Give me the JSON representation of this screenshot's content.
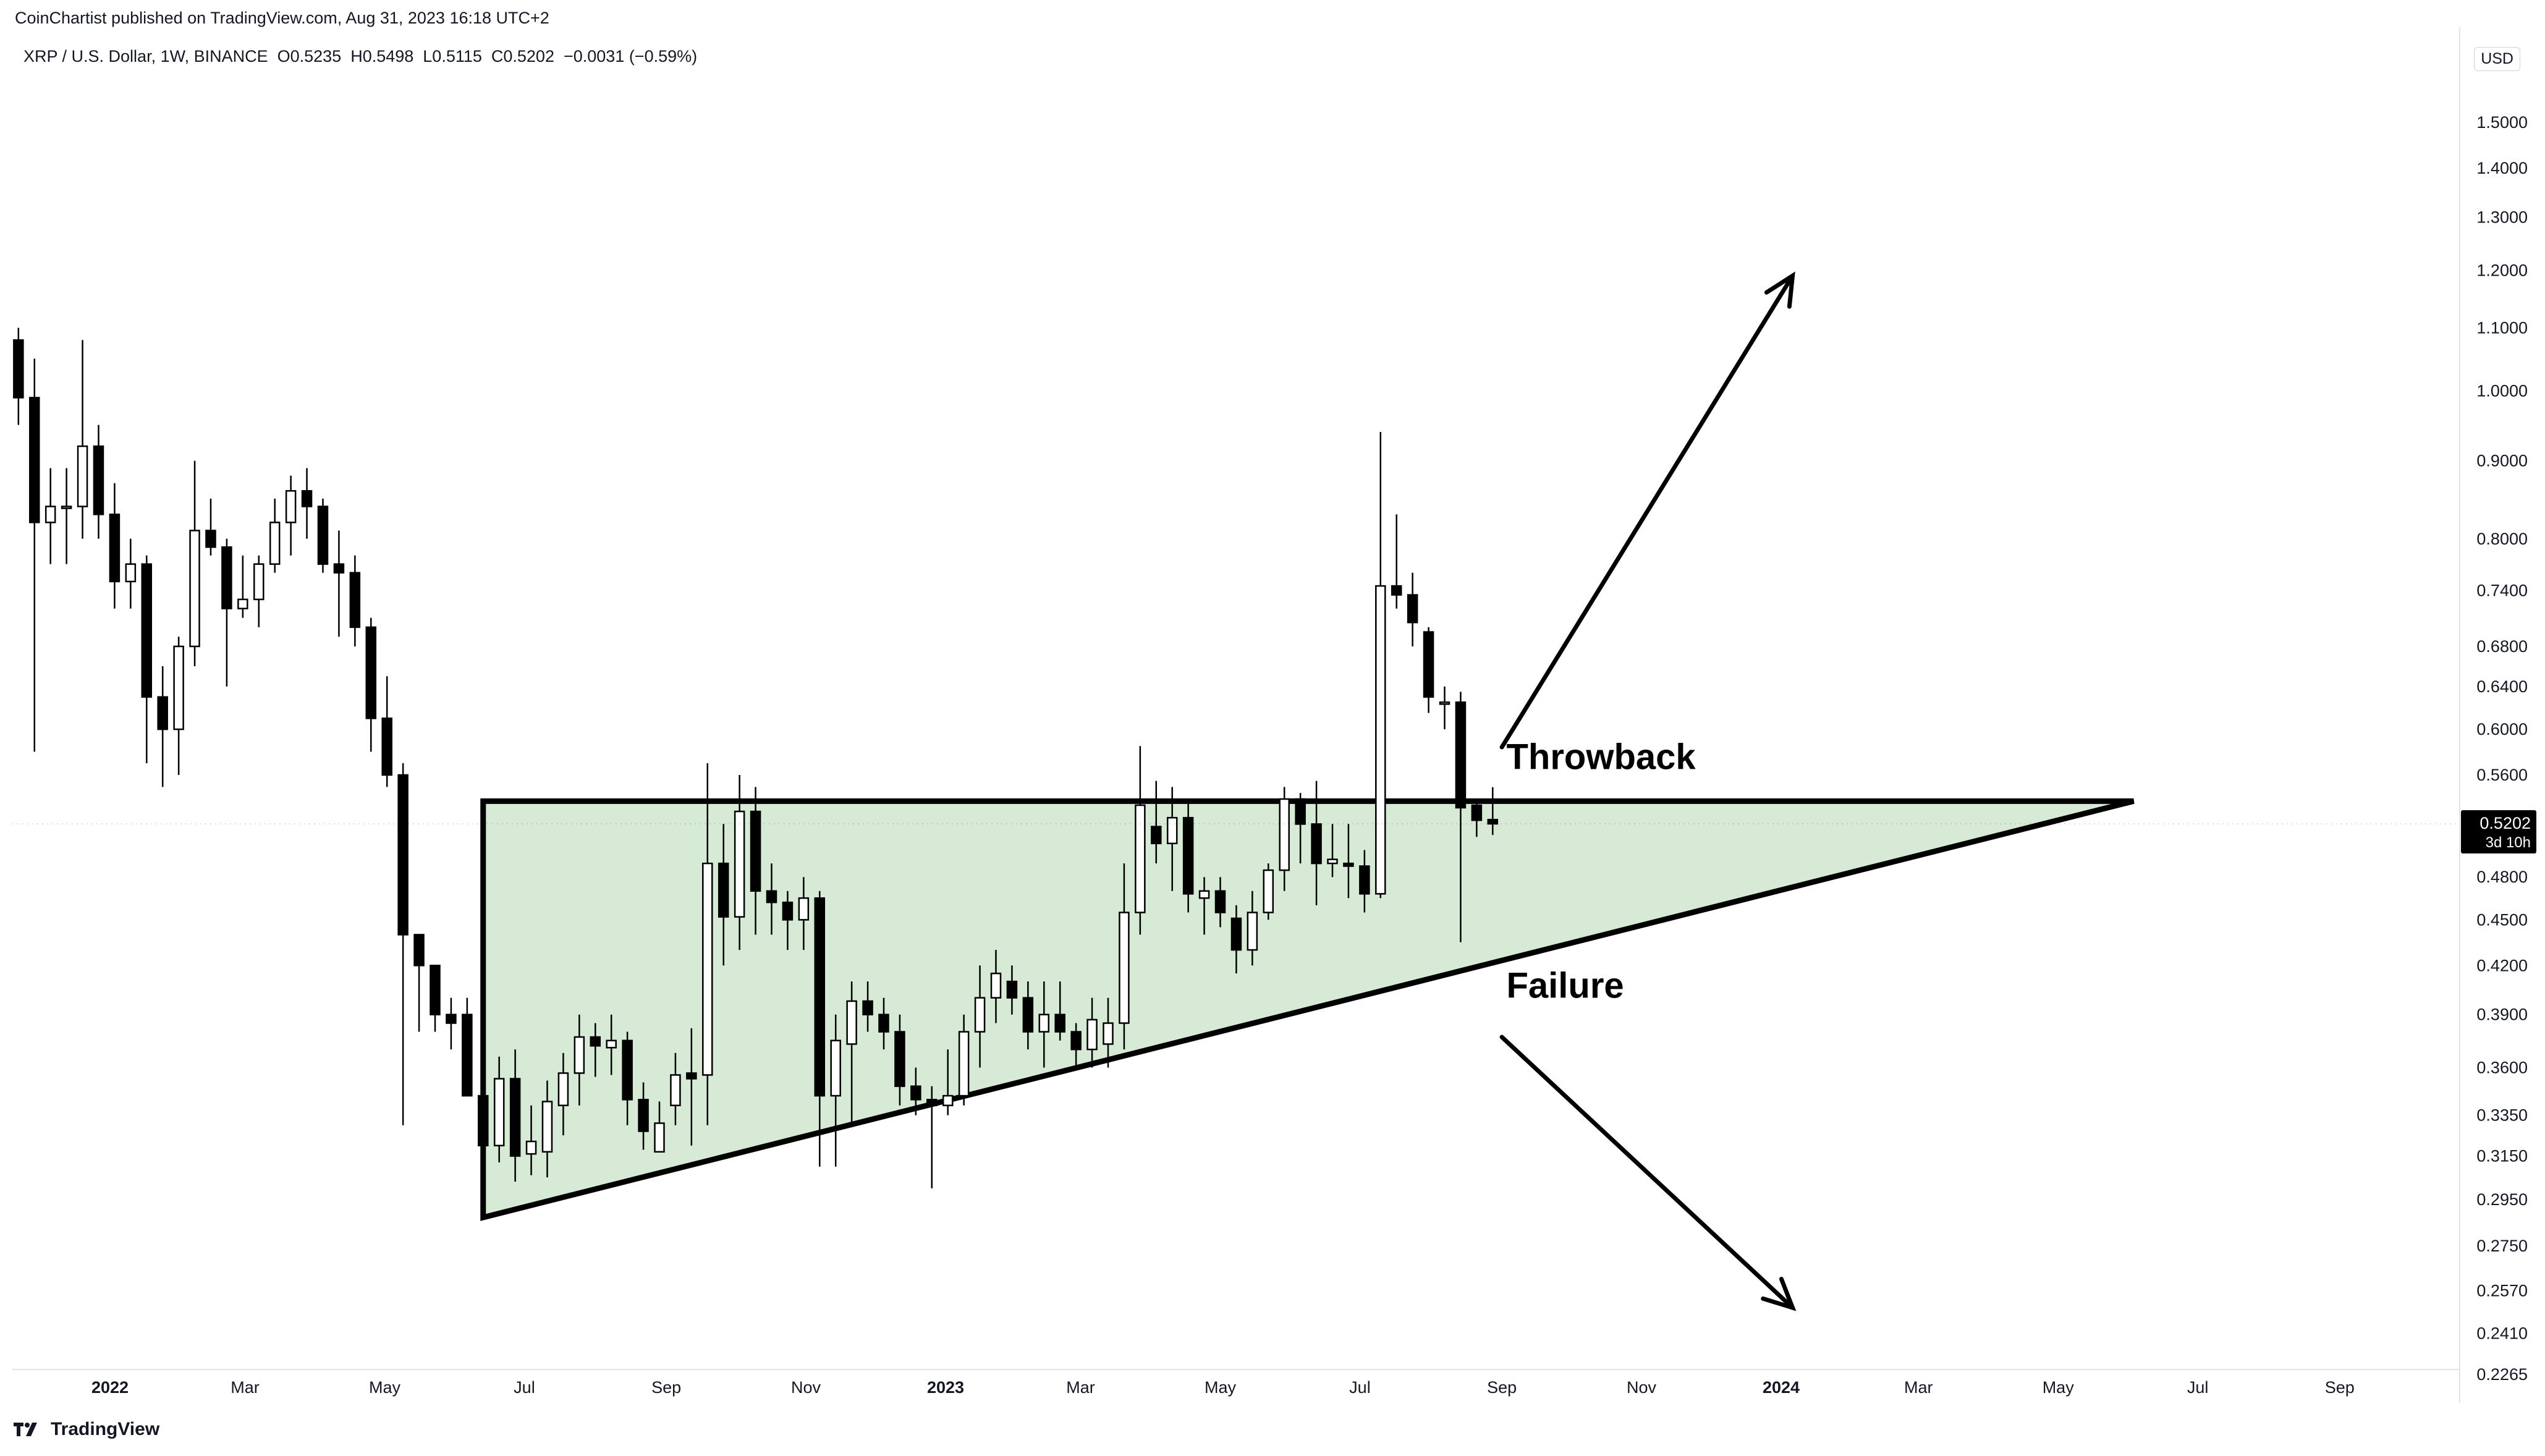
{
  "header": {
    "publisher": "CoinChartist published on TradingView.com, Aug 31, 2023 16:18 UTC+2",
    "symbol_line": "XRP / U.S. Dollar, 1W, BINANCE  O0.5235  H0.5498  L0.5115  C0.5202  −0.0031 (−0.59%)",
    "currency": "USD"
  },
  "footer": {
    "brand": "TradingView"
  },
  "colors": {
    "up_body": "#ffffff",
    "down_body": "#000000",
    "wick": "#000000",
    "triangle_fill": "#d6ead6",
    "grid": "#f0f3fa",
    "axis_text": "#131722"
  },
  "chart_data": {
    "type": "candlestick",
    "title": "XRP / U.S. Dollar, 1W, BINANCE",
    "scale": "log",
    "ylim": [
      0.2265,
      1.52
    ],
    "y_ticks": [
      "1.5000",
      "1.4000",
      "1.3000",
      "1.2000",
      "1.1000",
      "1.0000",
      "0.9000",
      "0.8000",
      "0.7400",
      "0.6800",
      "0.6400",
      "0.6000",
      "0.5600",
      "0.4800",
      "0.4500",
      "0.4200",
      "0.3900",
      "0.3600",
      "0.3350",
      "0.3150",
      "0.2950",
      "0.2750",
      "0.2570",
      "0.2410",
      "0.2265"
    ],
    "x_ticks": [
      {
        "label": "2022",
        "date": "2022-01-01",
        "bold": true
      },
      {
        "label": "Mar",
        "date": "2022-03-01"
      },
      {
        "label": "May",
        "date": "2022-05-01"
      },
      {
        "label": "Jul",
        "date": "2022-07-01"
      },
      {
        "label": "Sep",
        "date": "2022-09-01"
      },
      {
        "label": "Nov",
        "date": "2022-11-01"
      },
      {
        "label": "2023",
        "date": "2023-01-01",
        "bold": true
      },
      {
        "label": "Mar",
        "date": "2023-03-01"
      },
      {
        "label": "May",
        "date": "2023-05-01"
      },
      {
        "label": "Jul",
        "date": "2023-07-01"
      },
      {
        "label": "Sep",
        "date": "2023-09-01"
      },
      {
        "label": "Nov",
        "date": "2023-11-01"
      },
      {
        "label": "2024",
        "date": "2024-01-01",
        "bold": true
      },
      {
        "label": "Mar",
        "date": "2024-03-01"
      },
      {
        "label": "May",
        "date": "2024-05-01"
      },
      {
        "label": "Jul",
        "date": "2024-07-01"
      },
      {
        "label": "Sep",
        "date": "2024-09-01"
      }
    ],
    "last_price": {
      "value": "0.5202",
      "countdown": "3d 10h"
    },
    "candles": [
      {
        "d": "2021-11-22",
        "o": 1.08,
        "h": 1.1,
        "l": 0.95,
        "c": 0.99
      },
      {
        "d": "2021-11-29",
        "o": 0.99,
        "h": 1.05,
        "l": 0.58,
        "c": 0.82
      },
      {
        "d": "2021-12-06",
        "o": 0.82,
        "h": 0.89,
        "l": 0.77,
        "c": 0.84
      },
      {
        "d": "2021-12-13",
        "o": 0.84,
        "h": 0.89,
        "l": 0.77,
        "c": 0.84
      },
      {
        "d": "2021-12-20",
        "o": 0.84,
        "h": 1.08,
        "l": 0.8,
        "c": 0.92
      },
      {
        "d": "2021-12-27",
        "o": 0.92,
        "h": 0.95,
        "l": 0.8,
        "c": 0.83
      },
      {
        "d": "2022-01-03",
        "o": 0.83,
        "h": 0.87,
        "l": 0.72,
        "c": 0.75
      },
      {
        "d": "2022-01-10",
        "o": 0.75,
        "h": 0.8,
        "l": 0.72,
        "c": 0.77
      },
      {
        "d": "2022-01-17",
        "o": 0.77,
        "h": 0.78,
        "l": 0.57,
        "c": 0.63
      },
      {
        "d": "2022-01-24",
        "o": 0.63,
        "h": 0.66,
        "l": 0.55,
        "c": 0.6
      },
      {
        "d": "2022-01-31",
        "o": 0.6,
        "h": 0.69,
        "l": 0.56,
        "c": 0.68
      },
      {
        "d": "2022-02-07",
        "o": 0.68,
        "h": 0.9,
        "l": 0.66,
        "c": 0.81
      },
      {
        "d": "2022-02-14",
        "o": 0.81,
        "h": 0.85,
        "l": 0.78,
        "c": 0.79
      },
      {
        "d": "2022-02-21",
        "o": 0.79,
        "h": 0.8,
        "l": 0.64,
        "c": 0.72
      },
      {
        "d": "2022-02-28",
        "o": 0.72,
        "h": 0.78,
        "l": 0.71,
        "c": 0.73
      },
      {
        "d": "2022-03-07",
        "o": 0.73,
        "h": 0.78,
        "l": 0.7,
        "c": 0.77
      },
      {
        "d": "2022-03-14",
        "o": 0.77,
        "h": 0.85,
        "l": 0.76,
        "c": 0.82
      },
      {
        "d": "2022-03-21",
        "o": 0.82,
        "h": 0.88,
        "l": 0.78,
        "c": 0.86
      },
      {
        "d": "2022-03-28",
        "o": 0.86,
        "h": 0.89,
        "l": 0.8,
        "c": 0.84
      },
      {
        "d": "2022-04-04",
        "o": 0.84,
        "h": 0.85,
        "l": 0.76,
        "c": 0.77
      },
      {
        "d": "2022-04-11",
        "o": 0.77,
        "h": 0.81,
        "l": 0.69,
        "c": 0.76
      },
      {
        "d": "2022-04-18",
        "o": 0.76,
        "h": 0.78,
        "l": 0.68,
        "c": 0.7
      },
      {
        "d": "2022-04-25",
        "o": 0.7,
        "h": 0.71,
        "l": 0.58,
        "c": 0.61
      },
      {
        "d": "2022-05-02",
        "o": 0.61,
        "h": 0.65,
        "l": 0.55,
        "c": 0.56
      },
      {
        "d": "2022-05-09",
        "o": 0.56,
        "h": 0.57,
        "l": 0.33,
        "c": 0.44
      },
      {
        "d": "2022-05-16",
        "o": 0.44,
        "h": 0.44,
        "l": 0.38,
        "c": 0.42
      },
      {
        "d": "2022-05-23",
        "o": 0.42,
        "h": 0.42,
        "l": 0.38,
        "c": 0.39
      },
      {
        "d": "2022-05-30",
        "o": 0.39,
        "h": 0.4,
        "l": 0.37,
        "c": 0.385
      },
      {
        "d": "2022-06-06",
        "o": 0.39,
        "h": 0.4,
        "l": 0.35,
        "c": 0.345
      },
      {
        "d": "2022-06-13",
        "o": 0.345,
        "h": 0.355,
        "l": 0.29,
        "c": 0.32
      },
      {
        "d": "2022-06-20",
        "o": 0.32,
        "h": 0.366,
        "l": 0.312,
        "c": 0.354
      },
      {
        "d": "2022-06-27",
        "o": 0.354,
        "h": 0.37,
        "l": 0.303,
        "c": 0.315
      },
      {
        "d": "2022-07-04",
        "o": 0.316,
        "h": 0.34,
        "l": 0.306,
        "c": 0.322
      },
      {
        "d": "2022-07-11",
        "o": 0.317,
        "h": 0.353,
        "l": 0.305,
        "c": 0.342
      },
      {
        "d": "2022-07-18",
        "o": 0.34,
        "h": 0.368,
        "l": 0.325,
        "c": 0.357
      },
      {
        "d": "2022-07-25",
        "o": 0.357,
        "h": 0.39,
        "l": 0.34,
        "c": 0.377
      },
      {
        "d": "2022-08-01",
        "o": 0.377,
        "h": 0.385,
        "l": 0.355,
        "c": 0.372
      },
      {
        "d": "2022-08-08",
        "o": 0.371,
        "h": 0.39,
        "l": 0.356,
        "c": 0.375
      },
      {
        "d": "2022-08-15",
        "o": 0.375,
        "h": 0.38,
        "l": 0.33,
        "c": 0.343
      },
      {
        "d": "2022-08-22",
        "o": 0.343,
        "h": 0.352,
        "l": 0.318,
        "c": 0.327
      },
      {
        "d": "2022-08-29",
        "o": 0.317,
        "h": 0.342,
        "l": 0.318,
        "c": 0.331
      },
      {
        "d": "2022-09-05",
        "o": 0.34,
        "h": 0.368,
        "l": 0.33,
        "c": 0.356
      },
      {
        "d": "2022-09-12",
        "o": 0.357,
        "h": 0.382,
        "l": 0.32,
        "c": 0.354
      },
      {
        "d": "2022-09-19",
        "o": 0.356,
        "h": 0.57,
        "l": 0.33,
        "c": 0.49
      },
      {
        "d": "2022-09-26",
        "o": 0.49,
        "h": 0.52,
        "l": 0.42,
        "c": 0.452
      },
      {
        "d": "2022-10-03",
        "o": 0.452,
        "h": 0.56,
        "l": 0.43,
        "c": 0.53
      },
      {
        "d": "2022-10-10",
        "o": 0.53,
        "h": 0.55,
        "l": 0.44,
        "c": 0.47
      },
      {
        "d": "2022-10-17",
        "o": 0.47,
        "h": 0.49,
        "l": 0.44,
        "c": 0.462
      },
      {
        "d": "2022-10-24",
        "o": 0.462,
        "h": 0.47,
        "l": 0.43,
        "c": 0.45
      },
      {
        "d": "2022-10-31",
        "o": 0.45,
        "h": 0.48,
        "l": 0.43,
        "c": 0.465
      },
      {
        "d": "2022-11-07",
        "o": 0.465,
        "h": 0.47,
        "l": 0.31,
        "c": 0.345
      },
      {
        "d": "2022-11-14",
        "o": 0.345,
        "h": 0.39,
        "l": 0.31,
        "c": 0.375
      },
      {
        "d": "2022-11-21",
        "o": 0.373,
        "h": 0.41,
        "l": 0.33,
        "c": 0.398
      },
      {
        "d": "2022-11-28",
        "o": 0.398,
        "h": 0.41,
        "l": 0.38,
        "c": 0.39
      },
      {
        "d": "2022-12-05",
        "o": 0.39,
        "h": 0.4,
        "l": 0.37,
        "c": 0.38
      },
      {
        "d": "2022-12-12",
        "o": 0.38,
        "h": 0.39,
        "l": 0.34,
        "c": 0.35
      },
      {
        "d": "2022-12-19",
        "o": 0.35,
        "h": 0.36,
        "l": 0.335,
        "c": 0.343
      },
      {
        "d": "2022-12-26",
        "o": 0.343,
        "h": 0.35,
        "l": 0.3,
        "c": 0.34
      },
      {
        "d": "2023-01-02",
        "o": 0.34,
        "h": 0.37,
        "l": 0.335,
        "c": 0.345
      },
      {
        "d": "2023-01-09",
        "o": 0.345,
        "h": 0.39,
        "l": 0.34,
        "c": 0.38
      },
      {
        "d": "2023-01-16",
        "o": 0.38,
        "h": 0.42,
        "l": 0.36,
        "c": 0.4
      },
      {
        "d": "2023-01-23",
        "o": 0.4,
        "h": 0.43,
        "l": 0.385,
        "c": 0.415
      },
      {
        "d": "2023-01-30",
        "o": 0.41,
        "h": 0.42,
        "l": 0.39,
        "c": 0.4
      },
      {
        "d": "2023-02-06",
        "o": 0.4,
        "h": 0.41,
        "l": 0.37,
        "c": 0.38
      },
      {
        "d": "2023-02-13",
        "o": 0.38,
        "h": 0.41,
        "l": 0.36,
        "c": 0.39
      },
      {
        "d": "2023-02-20",
        "o": 0.39,
        "h": 0.41,
        "l": 0.375,
        "c": 0.38
      },
      {
        "d": "2023-02-27",
        "o": 0.38,
        "h": 0.385,
        "l": 0.36,
        "c": 0.37
      },
      {
        "d": "2023-03-06",
        "o": 0.37,
        "h": 0.4,
        "l": 0.36,
        "c": 0.387
      },
      {
        "d": "2023-03-13",
        "o": 0.373,
        "h": 0.4,
        "l": 0.36,
        "c": 0.385
      },
      {
        "d": "2023-03-20",
        "o": 0.385,
        "h": 0.49,
        "l": 0.37,
        "c": 0.455
      },
      {
        "d": "2023-03-27",
        "o": 0.455,
        "h": 0.585,
        "l": 0.44,
        "c": 0.535
      },
      {
        "d": "2023-04-03",
        "o": 0.518,
        "h": 0.555,
        "l": 0.49,
        "c": 0.505
      },
      {
        "d": "2023-04-10",
        "o": 0.505,
        "h": 0.55,
        "l": 0.47,
        "c": 0.525
      },
      {
        "d": "2023-04-17",
        "o": 0.525,
        "h": 0.54,
        "l": 0.455,
        "c": 0.468
      },
      {
        "d": "2023-04-24",
        "o": 0.465,
        "h": 0.48,
        "l": 0.44,
        "c": 0.47
      },
      {
        "d": "2023-05-01",
        "o": 0.47,
        "h": 0.48,
        "l": 0.445,
        "c": 0.455
      },
      {
        "d": "2023-05-08",
        "o": 0.451,
        "h": 0.46,
        "l": 0.415,
        "c": 0.43
      },
      {
        "d": "2023-05-15",
        "o": 0.43,
        "h": 0.47,
        "l": 0.42,
        "c": 0.455
      },
      {
        "d": "2023-05-22",
        "o": 0.455,
        "h": 0.49,
        "l": 0.45,
        "c": 0.485
      },
      {
        "d": "2023-05-29",
        "o": 0.485,
        "h": 0.55,
        "l": 0.47,
        "c": 0.54
      },
      {
        "d": "2023-06-05",
        "o": 0.54,
        "h": 0.545,
        "l": 0.49,
        "c": 0.52
      },
      {
        "d": "2023-06-12",
        "o": 0.52,
        "h": 0.555,
        "l": 0.46,
        "c": 0.49
      },
      {
        "d": "2023-06-19",
        "o": 0.49,
        "h": 0.52,
        "l": 0.48,
        "c": 0.493
      },
      {
        "d": "2023-06-26",
        "o": 0.49,
        "h": 0.52,
        "l": 0.465,
        "c": 0.488
      },
      {
        "d": "2023-07-03",
        "o": 0.488,
        "h": 0.5,
        "l": 0.455,
        "c": 0.468
      },
      {
        "d": "2023-07-10",
        "o": 0.468,
        "h": 0.94,
        "l": 0.465,
        "c": 0.745
      },
      {
        "d": "2023-07-17",
        "o": 0.745,
        "h": 0.83,
        "l": 0.72,
        "c": 0.735
      },
      {
        "d": "2023-07-24",
        "o": 0.735,
        "h": 0.76,
        "l": 0.68,
        "c": 0.705
      },
      {
        "d": "2023-07-31",
        "o": 0.695,
        "h": 0.7,
        "l": 0.615,
        "c": 0.63
      },
      {
        "d": "2023-08-07",
        "o": 0.625,
        "h": 0.64,
        "l": 0.6,
        "c": 0.625
      },
      {
        "d": "2023-08-14",
        "o": 0.625,
        "h": 0.635,
        "l": 0.435,
        "c": 0.533
      },
      {
        "d": "2023-08-21",
        "o": 0.535,
        "h": 0.54,
        "l": 0.51,
        "c": 0.523
      },
      {
        "d": "2023-08-28",
        "o": 0.5235,
        "h": 0.5498,
        "l": 0.5115,
        "c": 0.5202
      }
    ],
    "annotations": {
      "triangle": [
        {
          "d": "2022-06-13",
          "v": 0.5383
        },
        {
          "d": "2022-06-13",
          "v": 0.2871
        },
        {
          "d": "2024-06-03",
          "v": 0.5383
        }
      ],
      "arrow_up": [
        {
          "d": "2023-09-01",
          "v": 0.584
        },
        {
          "d": "2024-01-06",
          "v": 1.19
        }
      ],
      "arrow_down": [
        {
          "d": "2023-09-01",
          "v": 0.377
        },
        {
          "d": "2024-01-06",
          "v": 0.2505
        }
      ],
      "labels": [
        {
          "text": "Throwback",
          "d": "2023-09-03",
          "v": 0.565
        },
        {
          "text": "Failure",
          "d": "2023-09-03",
          "v": 0.4
        }
      ]
    }
  }
}
